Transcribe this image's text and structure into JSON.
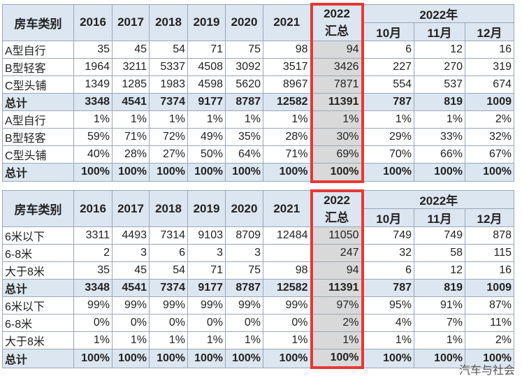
{
  "tables": [
    {
      "header": {
        "category": "房车类别",
        "years": [
          "2016",
          "2017",
          "2018",
          "2019",
          "2020",
          "2021"
        ],
        "summary": [
          "2022",
          "汇总"
        ],
        "group": "2022年",
        "months": [
          "10月",
          "11月",
          "12月"
        ]
      },
      "rows": [
        [
          "A型自行",
          "35",
          "45",
          "54",
          "71",
          "75",
          "98",
          "94",
          "6",
          "12",
          "16"
        ],
        [
          "B型轻客",
          "1964",
          "3211",
          "5337",
          "4508",
          "3092",
          "3517",
          "3426",
          "227",
          "270",
          "319"
        ],
        [
          "C型头铺",
          "1349",
          "1285",
          "1983",
          "4598",
          "5620",
          "8967",
          "7871",
          "554",
          "537",
          "674"
        ],
        [
          "总计",
          "3348",
          "4541",
          "7374",
          "9177",
          "8787",
          "12582",
          "11391",
          "787",
          "819",
          "1009"
        ],
        [
          "A型自行",
          "1%",
          "1%",
          "1%",
          "1%",
          "1%",
          "1%",
          "1%",
          "1%",
          "1%",
          "2%"
        ],
        [
          "B型轻客",
          "59%",
          "71%",
          "72%",
          "49%",
          "35%",
          "28%",
          "30%",
          "29%",
          "33%",
          "32%"
        ],
        [
          "C型头铺",
          "40%",
          "28%",
          "27%",
          "50%",
          "64%",
          "71%",
          "69%",
          "70%",
          "66%",
          "67%"
        ],
        [
          "总计",
          "100%",
          "100%",
          "100%",
          "100%",
          "100%",
          "100%",
          "100%",
          "100%",
          "100%",
          "100%"
        ]
      ]
    },
    {
      "header": {
        "category": "房车类别",
        "years": [
          "2016",
          "2017",
          "2018",
          "2019",
          "2020",
          "2021"
        ],
        "summary": [
          "2022",
          "汇总"
        ],
        "group": "2022年",
        "months": [
          "10月",
          "11月",
          "12月"
        ]
      },
      "rows": [
        [
          "6米以下",
          "3311",
          "4493",
          "7314",
          "9103",
          "8709",
          "12484",
          "11050",
          "749",
          "749",
          "878"
        ],
        [
          "6-8米",
          "2",
          "3",
          "6",
          "3",
          "3",
          "",
          "247",
          "32",
          "58",
          "115"
        ],
        [
          "大于8米",
          "35",
          "45",
          "54",
          "71",
          "75",
          "98",
          "94",
          "6",
          "12",
          "16"
        ],
        [
          "总计",
          "3348",
          "4541",
          "7374",
          "9177",
          "8787",
          "12582",
          "11391",
          "787",
          "819",
          "1009"
        ],
        [
          "6米以下",
          "99%",
          "99%",
          "99%",
          "99%",
          "99%",
          "99%",
          "97%",
          "95%",
          "91%",
          "87%"
        ],
        [
          "6-8米",
          "0%",
          "0%",
          "0%",
          "0%",
          "0%",
          "0%",
          "2%",
          "4%",
          "7%",
          "11%"
        ],
        [
          "大于8米",
          "1%",
          "1%",
          "1%",
          "1%",
          "1%",
          "1%",
          "1%",
          "1%",
          "1%",
          "2%"
        ],
        [
          "总计",
          "100%",
          "100%",
          "100%",
          "100%",
          "100%",
          "100%",
          "100%",
          "100%",
          "100%",
          "100%"
        ]
      ]
    }
  ],
  "watermark": "汽车与社会"
}
